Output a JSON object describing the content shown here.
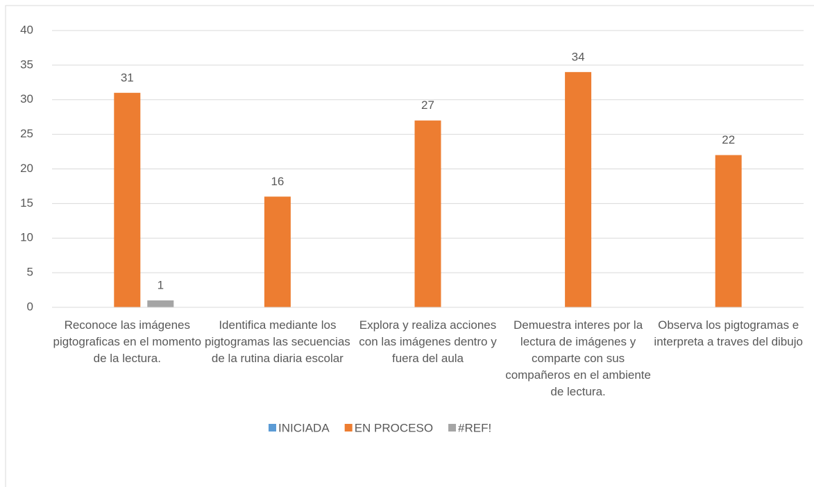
{
  "chart_data": {
    "type": "bar",
    "categories": [
      "Reconoce las imágenes pigtograficas en el momento de la lectura.",
      "Identifica mediante los pigtogramas las secuencias de la rutina diaria escolar",
      "Explora y realiza acciones con las imágenes dentro y fuera del aula",
      "Demuestra interes por la lectura de imágenes y comparte con sus compañeros en el ambiente de lectura.",
      "Observa los pigtogramas e interpreta a traves del dibujo"
    ],
    "series": [
      {
        "name": "INICIADA",
        "color": "#5b9bd5",
        "values": [
          null,
          null,
          null,
          null,
          null
        ]
      },
      {
        "name": "EN PROCESO",
        "color": "#ed7d31",
        "values": [
          31,
          16,
          27,
          34,
          22
        ]
      },
      {
        "name": "#REF!",
        "color": "#a5a5a5",
        "values": [
          1,
          null,
          null,
          null,
          null
        ]
      }
    ],
    "ylim": [
      0,
      40
    ],
    "yticks": [
      0,
      5,
      10,
      15,
      20,
      25,
      30,
      35,
      40
    ],
    "grid": true,
    "legend": "bottom"
  }
}
